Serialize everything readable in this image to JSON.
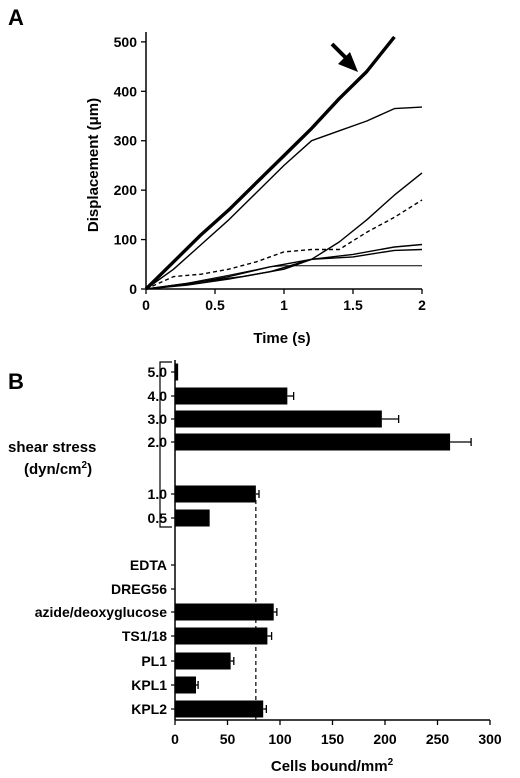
{
  "chart_data": [
    {
      "panel_label": "A",
      "type": "line",
      "xlabel": "Time (s)",
      "ylabel": "Displacement (μm)",
      "xlim": [
        0,
        2
      ],
      "ylim": [
        0,
        520
      ],
      "xticks": [
        0,
        0.5,
        1,
        1.5,
        2
      ],
      "xtick_labels": [
        "0",
        "0.5",
        "1",
        "1.5",
        "2"
      ],
      "yticks": [
        0,
        100,
        200,
        300,
        400,
        500
      ],
      "ytick_labels": [
        "0",
        "100",
        "200",
        "300",
        "400",
        "500"
      ],
      "grid": false,
      "annotation": "arrow pointing at thick line near t = 1.6 s",
      "series": [
        {
          "style": "thick",
          "x": [
            0,
            0.2,
            0.4,
            0.6,
            0.8,
            1.0,
            1.2,
            1.4,
            1.6,
            1.8
          ],
          "y": [
            0,
            55,
            110,
            160,
            215,
            270,
            325,
            385,
            440,
            510
          ]
        },
        {
          "style": "solid",
          "x": [
            0,
            0.2,
            0.4,
            0.6,
            0.8,
            1.0,
            1.2,
            1.4,
            1.6,
            1.8,
            2.0
          ],
          "y": [
            0,
            40,
            90,
            140,
            195,
            250,
            300,
            320,
            340,
            365,
            368
          ]
        },
        {
          "style": "solid",
          "x": [
            0,
            0.4,
            0.7,
            1.0,
            1.2,
            1.4,
            1.6,
            1.8,
            2.0
          ],
          "y": [
            0,
            15,
            25,
            40,
            60,
            95,
            140,
            190,
            235
          ]
        },
        {
          "style": "dashed",
          "x": [
            0,
            0.2,
            0.4,
            0.6,
            0.8,
            1.0,
            1.2,
            1.4,
            1.6,
            1.8,
            2.0
          ],
          "y": [
            0,
            25,
            30,
            40,
            55,
            75,
            80,
            80,
            115,
            145,
            180
          ]
        },
        {
          "style": "solid",
          "x": [
            0,
            0.3,
            0.6,
            0.9,
            1.2,
            1.5,
            1.8,
            2.0
          ],
          "y": [
            0,
            10,
            25,
            45,
            60,
            70,
            85,
            90
          ]
        },
        {
          "style": "solid",
          "x": [
            0,
            0.3,
            0.6,
            0.9,
            1.2,
            1.5,
            1.8,
            2.0
          ],
          "y": [
            0,
            8,
            20,
            35,
            60,
            65,
            78,
            80
          ]
        },
        {
          "style": "thin",
          "x": [
            0,
            0.3,
            0.6,
            0.9,
            1.0,
            1.5,
            2.0
          ],
          "y": [
            0,
            12,
            28,
            45,
            47,
            47,
            47
          ]
        }
      ]
    },
    {
      "panel_label": "B",
      "type": "bar",
      "orientation": "horizontal",
      "xlabel": "Cells bound/mm2",
      "xlim": [
        0,
        300
      ],
      "xticks": [
        0,
        50,
        100,
        150,
        200,
        250,
        300
      ],
      "xtick_labels": [
        "0",
        "50",
        "100",
        "150",
        "200",
        "250",
        "300"
      ],
      "group_label": [
        "shear stress",
        "(dyn/cm2)"
      ],
      "reference_line_x": 77,
      "categories": [
        "5.0",
        "4.0",
        "3.0",
        "2.0",
        "1.0",
        "0.5",
        "EDTA",
        "DREG56",
        "azide/deoxyglucose",
        "TS1/18",
        "PL1",
        "KPL1",
        "KPL2"
      ],
      "values": [
        3,
        107,
        197,
        262,
        77,
        33,
        0,
        0,
        94,
        88,
        53,
        20,
        84
      ],
      "errors": [
        0,
        6,
        16,
        20,
        3,
        0,
        0,
        0,
        3,
        4,
        3,
        2,
        3
      ]
    }
  ],
  "labels": {
    "panel_a": "A",
    "panel_b": "B",
    "a_xlabel": "Time (s)",
    "a_ylabel": "Displacement (μm)",
    "b_xlabel_main": "Cells bound/mm",
    "b_xlabel_sup": "2",
    "shear_line1": "shear stress",
    "shear_line2": "(dyn/cm",
    "shear_sup": "2",
    "shear_close": ")"
  }
}
